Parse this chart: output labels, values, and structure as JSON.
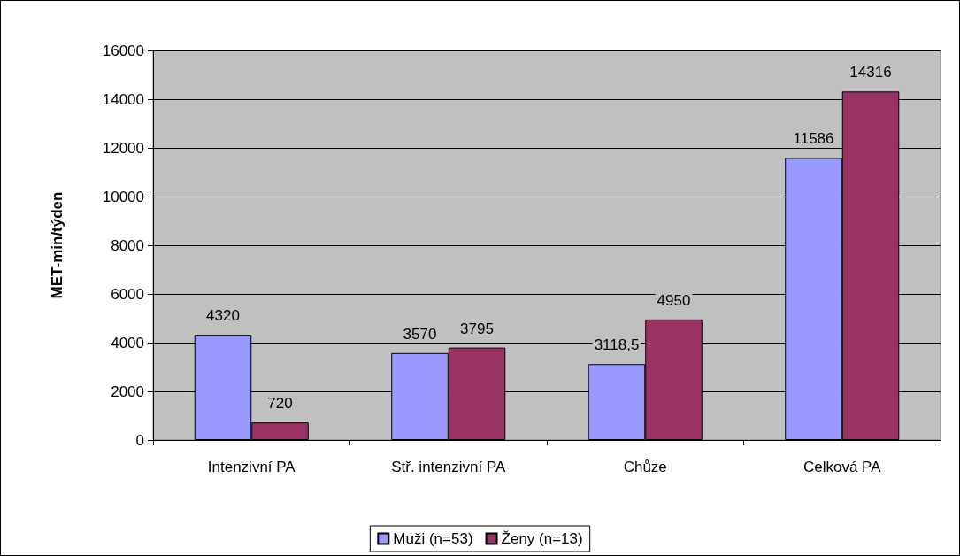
{
  "chart_data": {
    "type": "bar",
    "ylabel": "MET-min/týden",
    "categories": [
      "Intenzivní PA",
      "Stř. intenzivní PA",
      "Chůze",
      "Celková PA"
    ],
    "series": [
      {
        "name": "Muži (n=53)",
        "color": "#9999ff",
        "values": [
          4320,
          3570,
          3118.5,
          11586
        ],
        "value_labels": [
          "4320",
          "3570",
          "3118,5",
          "11586"
        ]
      },
      {
        "name": "Ženy (n=13)",
        "color": "#993366",
        "values": [
          720,
          3795,
          4950,
          14316
        ],
        "value_labels": [
          "720",
          "3795",
          "4950",
          "14316"
        ]
      }
    ],
    "ylim": [
      0,
      16000
    ],
    "yticks": [
      0,
      2000,
      4000,
      6000,
      8000,
      10000,
      12000,
      14000,
      16000
    ],
    "grid": "y",
    "legend": "bottom"
  }
}
